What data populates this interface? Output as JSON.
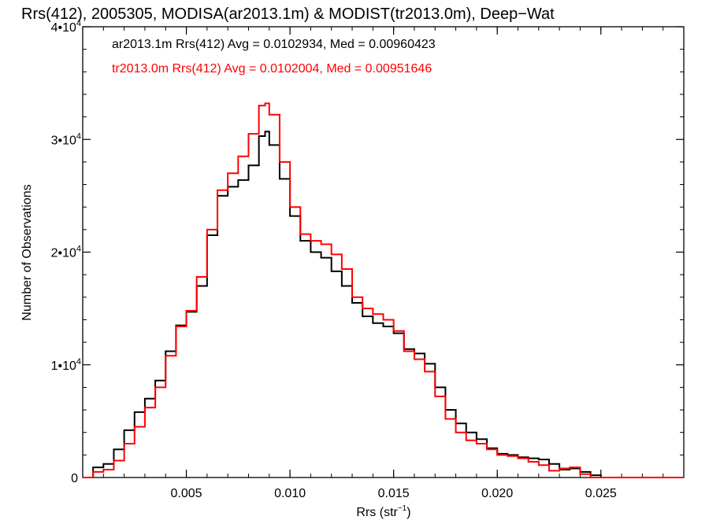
{
  "chart_data": {
    "type": "line",
    "title": "Rrs(412), 2005305, MODISA(ar2013.1m) & MODIST(tr2013.0m), Deep−Wat",
    "xlabel": "Rrs (str",
    "xlabel_exp": "−1",
    "xlabel_close": ")",
    "ylabel": "Number of Observations",
    "xlim": [
      0.0,
      0.029
    ],
    "ylim": [
      0,
      40000
    ],
    "x_ticks": [
      {
        "value": 0.005,
        "label": "0.005"
      },
      {
        "value": 0.01,
        "label": "0.010"
      },
      {
        "value": 0.015,
        "label": "0.015"
      },
      {
        "value": 0.02,
        "label": "0.020"
      },
      {
        "value": 0.025,
        "label": "0.025"
      }
    ],
    "y_ticks": [
      {
        "value": 0,
        "label": "0",
        "exp": ""
      },
      {
        "value": 10000,
        "label": "1•10",
        "exp": "4"
      },
      {
        "value": 20000,
        "label": "2•10",
        "exp": "4"
      },
      {
        "value": 30000,
        "label": "3•10",
        "exp": "4"
      },
      {
        "value": 40000,
        "label": "4•10",
        "exp": "4"
      }
    ],
    "grid": false,
    "legend_position": "top-left",
    "series": [
      {
        "name": "ar2013.1m Rrs(412) Avg = 0.0102934, Med = 0.00960423",
        "color": "#000000",
        "points": [
          [
            0.0,
            0
          ],
          [
            0.0005,
            900
          ],
          [
            0.001,
            1200
          ],
          [
            0.0015,
            2500
          ],
          [
            0.002,
            4200
          ],
          [
            0.0025,
            5800
          ],
          [
            0.003,
            7000
          ],
          [
            0.0035,
            8600
          ],
          [
            0.004,
            11200
          ],
          [
            0.0045,
            13500
          ],
          [
            0.005,
            14700
          ],
          [
            0.0055,
            17000
          ],
          [
            0.006,
            21500
          ],
          [
            0.0065,
            25000
          ],
          [
            0.007,
            25800
          ],
          [
            0.0075,
            26400
          ],
          [
            0.008,
            27700
          ],
          [
            0.0085,
            30300
          ],
          [
            0.0088,
            30700
          ],
          [
            0.009,
            29500
          ],
          [
            0.0095,
            26500
          ],
          [
            0.01,
            23200
          ],
          [
            0.0105,
            21000
          ],
          [
            0.011,
            20000
          ],
          [
            0.0115,
            19500
          ],
          [
            0.012,
            18300
          ],
          [
            0.0125,
            17000
          ],
          [
            0.013,
            15500
          ],
          [
            0.0135,
            14300
          ],
          [
            0.014,
            13700
          ],
          [
            0.0145,
            13400
          ],
          [
            0.015,
            12800
          ],
          [
            0.0155,
            11400
          ],
          [
            0.016,
            11000
          ],
          [
            0.0165,
            10100
          ],
          [
            0.017,
            8000
          ],
          [
            0.0175,
            6000
          ],
          [
            0.018,
            4800
          ],
          [
            0.0185,
            4000
          ],
          [
            0.019,
            3400
          ],
          [
            0.0195,
            2600
          ],
          [
            0.02,
            2100
          ],
          [
            0.0205,
            2000
          ],
          [
            0.021,
            1800
          ],
          [
            0.0215,
            1700
          ],
          [
            0.022,
            1600
          ],
          [
            0.0225,
            1200
          ],
          [
            0.023,
            700
          ],
          [
            0.0235,
            800
          ],
          [
            0.024,
            500
          ],
          [
            0.0245,
            200
          ],
          [
            0.025,
            0
          ],
          [
            0.029,
            0
          ]
        ]
      },
      {
        "name": "tr2013.0m Rrs(412) Avg = 0.0102004, Med = 0.00951646",
        "color": "#ff0000",
        "points": [
          [
            0.0,
            0
          ],
          [
            0.0005,
            500
          ],
          [
            0.001,
            700
          ],
          [
            0.0015,
            1500
          ],
          [
            0.002,
            3000
          ],
          [
            0.0025,
            4500
          ],
          [
            0.003,
            6200
          ],
          [
            0.0035,
            8000
          ],
          [
            0.004,
            10800
          ],
          [
            0.0045,
            13400
          ],
          [
            0.005,
            14800
          ],
          [
            0.0055,
            17800
          ],
          [
            0.006,
            22000
          ],
          [
            0.0065,
            25500
          ],
          [
            0.007,
            27000
          ],
          [
            0.0075,
            28500
          ],
          [
            0.008,
            30500
          ],
          [
            0.0085,
            33000
          ],
          [
            0.0088,
            33200
          ],
          [
            0.009,
            32200
          ],
          [
            0.0095,
            28000
          ],
          [
            0.01,
            24000
          ],
          [
            0.0105,
            21600
          ],
          [
            0.011,
            21000
          ],
          [
            0.0115,
            20700
          ],
          [
            0.012,
            19800
          ],
          [
            0.0125,
            18500
          ],
          [
            0.013,
            16000
          ],
          [
            0.0135,
            15000
          ],
          [
            0.014,
            14500
          ],
          [
            0.0145,
            14000
          ],
          [
            0.015,
            13000
          ],
          [
            0.0155,
            11200
          ],
          [
            0.016,
            10500
          ],
          [
            0.0165,
            9400
          ],
          [
            0.017,
            7200
          ],
          [
            0.0175,
            5200
          ],
          [
            0.018,
            4000
          ],
          [
            0.0185,
            3300
          ],
          [
            0.019,
            3000
          ],
          [
            0.0195,
            2500
          ],
          [
            0.02,
            2000
          ],
          [
            0.0205,
            1900
          ],
          [
            0.021,
            1700
          ],
          [
            0.0215,
            1400
          ],
          [
            0.022,
            1100
          ],
          [
            0.0225,
            600
          ],
          [
            0.023,
            800
          ],
          [
            0.0235,
            900
          ],
          [
            0.024,
            300
          ],
          [
            0.0245,
            0
          ],
          [
            0.029,
            0
          ]
        ]
      }
    ]
  }
}
